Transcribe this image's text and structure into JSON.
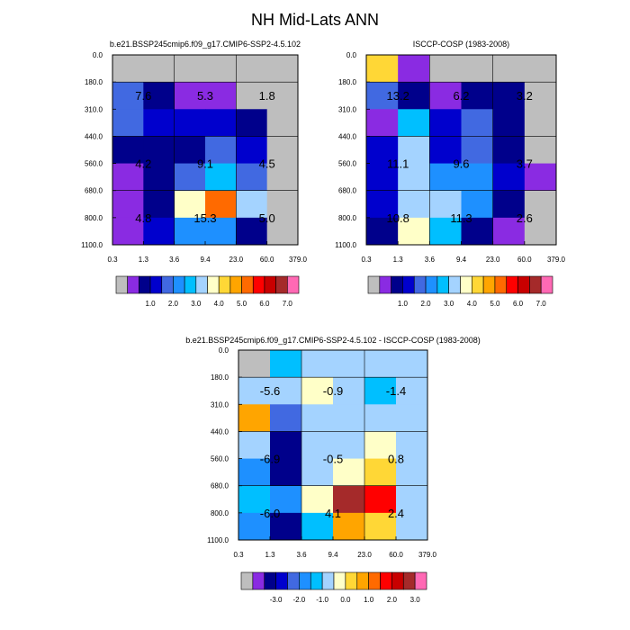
{
  "figure_title": "NH Mid-Lats ANN",
  "colors": {
    "palette": [
      "#bebebe",
      "#8a2be2",
      "#00008b",
      "#0000cd",
      "#4169e1",
      "#1e90ff",
      "#00bfff",
      "#a4d3ff",
      "#ffffc8",
      "#ffd736",
      "#ffa500",
      "#ff6a00",
      "#ff0000",
      "#c80000",
      "#a52a2a",
      "#ff69b4"
    ],
    "mean_box_grid": "#000000"
  },
  "chart_data": [
    {
      "type": "heatmap",
      "id": "model",
      "title": "b.e21.BSSP245cmip6.f09_g17.CMIP6-SSP2-4.5.102",
      "xlabel": "",
      "ylabel": "",
      "x_tick_labels": [
        "0.3",
        "1.3",
        "3.6",
        "9.4",
        "23.0",
        "60.0",
        "379.0"
      ],
      "y_tick_labels": [
        "0.0",
        "180.0",
        "310.0",
        "440.0",
        "560.0",
        "680.0",
        "800.0",
        "1100.0"
      ],
      "x_unit": "optical depth",
      "y_unit": "hPa",
      "cell_color_index": [
        [
          0,
          0,
          0,
          0,
          0,
          0
        ],
        [
          4,
          2,
          1,
          1,
          0,
          0
        ],
        [
          4,
          3,
          3,
          3,
          2,
          0
        ],
        [
          2,
          2,
          2,
          4,
          3,
          0
        ],
        [
          1,
          2,
          4,
          6,
          4,
          0
        ],
        [
          1,
          2,
          8,
          11,
          7,
          0
        ],
        [
          1,
          3,
          5,
          5,
          2,
          0
        ]
      ],
      "block_values": [
        {
          "row": 0,
          "col": 0,
          "text": "7.6"
        },
        {
          "row": 0,
          "col": 1,
          "text": "5.3"
        },
        {
          "row": 0,
          "col": 2,
          "text": "1.8"
        },
        {
          "row": 1,
          "col": 0,
          "text": "4.2"
        },
        {
          "row": 1,
          "col": 1,
          "text": "9.1"
        },
        {
          "row": 1,
          "col": 2,
          "text": "4.5"
        },
        {
          "row": 2,
          "col": 0,
          "text": "4.8"
        },
        {
          "row": 2,
          "col": 1,
          "text": "15.3"
        },
        {
          "row": 2,
          "col": 2,
          "text": "5.0"
        }
      ],
      "colorbar": {
        "labels": [
          "1.0",
          "2.0",
          "3.0",
          "4.0",
          "5.0",
          "6.0",
          "7.0"
        ],
        "n_colors": 16
      }
    },
    {
      "type": "heatmap",
      "id": "obs",
      "title": "ISCCP-COSP (1983-2008)",
      "xlabel": "",
      "ylabel": "",
      "x_tick_labels": [
        "0.3",
        "1.3",
        "3.6",
        "9.4",
        "23.0",
        "60.0",
        "379.0"
      ],
      "y_tick_labels": [
        "0.0",
        "180.0",
        "310.0",
        "440.0",
        "560.0",
        "680.0",
        "800.0",
        "1100.0"
      ],
      "x_unit": "optical depth",
      "y_unit": "hPa",
      "cell_color_index": [
        [
          9,
          1,
          0,
          0,
          0,
          0
        ],
        [
          4,
          2,
          1,
          2,
          2,
          0
        ],
        [
          1,
          6,
          3,
          4,
          2,
          0
        ],
        [
          3,
          7,
          3,
          4,
          2,
          0
        ],
        [
          3,
          7,
          5,
          5,
          3,
          1
        ],
        [
          3,
          7,
          7,
          5,
          2,
          0
        ],
        [
          2,
          8,
          6,
          2,
          1,
          0
        ]
      ],
      "block_values": [
        {
          "row": 0,
          "col": 0,
          "text": "13.2"
        },
        {
          "row": 0,
          "col": 1,
          "text": "6.2"
        },
        {
          "row": 0,
          "col": 2,
          "text": "3.2"
        },
        {
          "row": 1,
          "col": 0,
          "text": "11.1"
        },
        {
          "row": 1,
          "col": 1,
          "text": "9.6"
        },
        {
          "row": 1,
          "col": 2,
          "text": "3.7"
        },
        {
          "row": 2,
          "col": 0,
          "text": "10.8"
        },
        {
          "row": 2,
          "col": 1,
          "text": "11.3"
        },
        {
          "row": 2,
          "col": 2,
          "text": "2.6"
        }
      ],
      "colorbar": {
        "labels": [
          "1.0",
          "2.0",
          "3.0",
          "4.0",
          "5.0",
          "6.0",
          "7.0"
        ],
        "n_colors": 16
      }
    },
    {
      "type": "heatmap",
      "id": "diff",
      "title": "b.e21.BSSP245cmip6.f09_g17.CMIP6-SSP2-4.5.102 - ISCCP-COSP (1983-2008)",
      "xlabel": "",
      "ylabel": "",
      "x_tick_labels": [
        "0.3",
        "1.3",
        "3.6",
        "9.4",
        "23.0",
        "60.0",
        "379.0"
      ],
      "y_tick_labels": [
        "0.0",
        "180.0",
        "310.0",
        "440.0",
        "560.0",
        "680.0",
        "800.0",
        "1100.0"
      ],
      "x_unit": "optical depth",
      "y_unit": "hPa",
      "cell_color_index": [
        [
          0,
          6,
          7,
          7,
          7,
          7
        ],
        [
          7,
          7,
          8,
          7,
          6,
          7
        ],
        [
          10,
          4,
          7,
          7,
          7,
          7
        ],
        [
          7,
          2,
          7,
          7,
          8,
          7
        ],
        [
          5,
          2,
          7,
          8,
          9,
          7
        ],
        [
          6,
          5,
          8,
          14,
          12,
          7
        ],
        [
          5,
          2,
          6,
          10,
          9,
          7
        ]
      ],
      "block_values": [
        {
          "row": 0,
          "col": 0,
          "text": "-5.6"
        },
        {
          "row": 0,
          "col": 1,
          "text": "-0.9"
        },
        {
          "row": 0,
          "col": 2,
          "text": "-1.4"
        },
        {
          "row": 1,
          "col": 0,
          "text": "-6.9"
        },
        {
          "row": 1,
          "col": 1,
          "text": "-0.5"
        },
        {
          "row": 1,
          "col": 2,
          "text": "0.8"
        },
        {
          "row": 2,
          "col": 0,
          "text": "-6.0"
        },
        {
          "row": 2,
          "col": 1,
          "text": "4.1"
        },
        {
          "row": 2,
          "col": 2,
          "text": "2.4"
        }
      ],
      "colorbar": {
        "labels": [
          "-3.0",
          "-2.0",
          "-1.0",
          "0.0",
          "1.0",
          "2.0",
          "3.0"
        ],
        "n_colors": 16
      }
    }
  ]
}
